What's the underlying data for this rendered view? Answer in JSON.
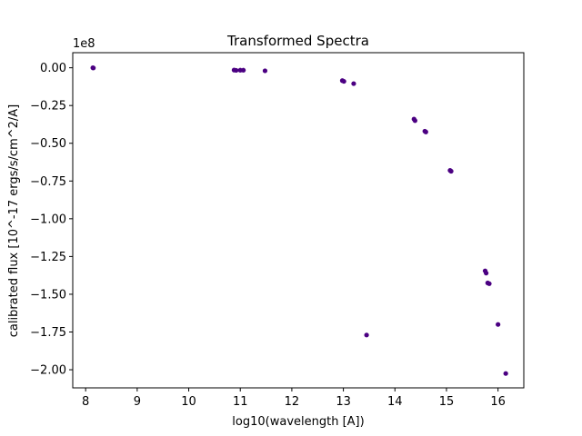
{
  "chart_data": {
    "type": "scatter",
    "title": "Transformed Spectra",
    "xlabel": "log10(wavelength [A])",
    "ylabel": "calibrated flux [10^-17 ergs/s/cm^2/A]",
    "offset_text": "1e8",
    "xlim": [
      7.75,
      16.5
    ],
    "ylim": [
      -2.12,
      0.1
    ],
    "x_ticks": [
      8,
      9,
      10,
      11,
      12,
      13,
      14,
      15,
      16
    ],
    "x_tick_labels": [
      "8",
      "9",
      "10",
      "11",
      "12",
      "13",
      "14",
      "15",
      "16"
    ],
    "y_ticks": [
      0.0,
      -0.25,
      -0.5,
      -0.75,
      -1.0,
      -1.25,
      -1.5,
      -1.75,
      -2.0
    ],
    "y_tick_labels": [
      "0.00",
      "−0.25",
      "−0.50",
      "−0.75",
      "−1.00",
      "−1.25",
      "−1.50",
      "−1.75",
      "−2.00"
    ],
    "grid": false,
    "marker_color": "#4b0082",
    "series": [
      {
        "points": [
          {
            "x": 8.14,
            "y": 0.0
          },
          {
            "x": 8.15,
            "y": -0.001
          },
          {
            "x": 10.88,
            "y": -0.015
          },
          {
            "x": 10.92,
            "y": -0.017
          },
          {
            "x": 11.0,
            "y": -0.016
          },
          {
            "x": 11.06,
            "y": -0.016
          },
          {
            "x": 11.48,
            "y": -0.02
          },
          {
            "x": 12.98,
            "y": -0.085
          },
          {
            "x": 13.01,
            "y": -0.09
          },
          {
            "x": 13.2,
            "y": -0.105
          },
          {
            "x": 13.45,
            "y": -1.77
          },
          {
            "x": 14.37,
            "y": -0.34
          },
          {
            "x": 14.39,
            "y": -0.35
          },
          {
            "x": 14.58,
            "y": -0.42
          },
          {
            "x": 14.6,
            "y": -0.425
          },
          {
            "x": 15.07,
            "y": -0.68
          },
          {
            "x": 15.09,
            "y": -0.685
          },
          {
            "x": 15.75,
            "y": -1.345
          },
          {
            "x": 15.77,
            "y": -1.36
          },
          {
            "x": 15.8,
            "y": -1.425
          },
          {
            "x": 15.83,
            "y": -1.43
          },
          {
            "x": 16.0,
            "y": -1.7
          },
          {
            "x": 16.15,
            "y": -2.025
          }
        ]
      }
    ]
  }
}
